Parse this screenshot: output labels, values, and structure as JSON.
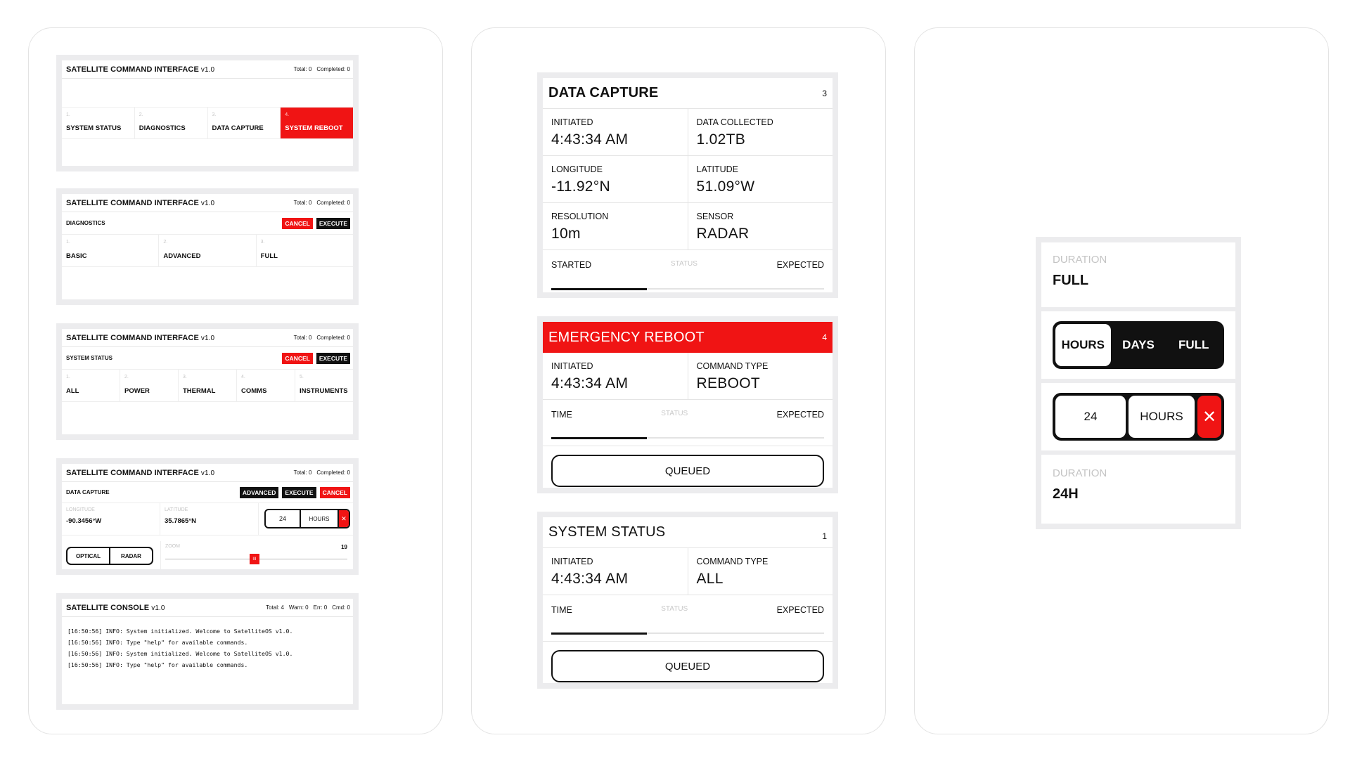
{
  "system_reboot_panel": {
    "title": "SATELLITE COMMAND INTERFACE",
    "version": "v1.0",
    "total": "Total: 0",
    "completed": "Completed: 0",
    "tabs": [
      {
        "num": "1.",
        "label": "SYSTEM STATUS"
      },
      {
        "num": "2.",
        "label": "DIAGNOSTICS"
      },
      {
        "num": "3.",
        "label": "DATA CAPTURE"
      },
      {
        "num": "4.",
        "label": "SYSTEM REBOOT"
      }
    ]
  },
  "diagnostics_panel": {
    "title": "SATELLITE COMMAND INTERFACE",
    "version": "v1.0",
    "total": "Total: 0",
    "completed": "Completed: 0",
    "section": "DIAGNOSTICS",
    "cancel": "CANCEL",
    "execute": "EXECUTE",
    "tabs": [
      {
        "num": "1.",
        "label": "BASIC"
      },
      {
        "num": "2.",
        "label": "ADVANCED"
      },
      {
        "num": "3.",
        "label": "FULL"
      }
    ]
  },
  "status_panel": {
    "title": "SATELLITE COMMAND INTERFACE",
    "version": "v1.0",
    "total": "Total: 0",
    "completed": "Completed: 0",
    "section": "SYSTEM STATUS",
    "cancel": "CANCEL",
    "execute": "EXECUTE",
    "tabs": [
      {
        "num": "1.",
        "label": "ALL"
      },
      {
        "num": "2.",
        "label": "POWER"
      },
      {
        "num": "3.",
        "label": "THERMAL"
      },
      {
        "num": "4.",
        "label": "COMMS"
      },
      {
        "num": "5.",
        "label": "INSTRUMENTS"
      }
    ]
  },
  "capture_panel": {
    "title": "SATELLITE COMMAND INTERFACE",
    "version": "v1.0",
    "total": "Total: 0",
    "completed": "Completed: 0",
    "section": "DATA CAPTURE",
    "advanced": "ADVANCED",
    "execute": "EXECUTE",
    "cancel": "CANCEL",
    "longitude_label": "LONGITUDE",
    "longitude_value": "-90.3456°W",
    "latitude_label": "LATITUDE",
    "latitude_value": "35.7865°N",
    "duration_value": "24",
    "duration_unit": "HOURS",
    "clear": "✕",
    "sensor_options": [
      "OPTICAL",
      "RADAR"
    ],
    "zoom_label": "ZOOM",
    "zoom_value": "19",
    "zoom_fraction": 0.49,
    "zoom_thumb": "III"
  },
  "console_panel": {
    "title": "SATELLITE CONSOLE",
    "version": "v1.0",
    "total": "Total: 4",
    "warn": "Warn: 0",
    "err": "Err: 0",
    "cmd": "Cmd: 0",
    "lines": [
      "[16:50:56] INFO: System initialized. Welcome to SatelliteOS v1.0.",
      "[16:50:56] INFO: Type \"help\" for available commands.",
      "[16:50:56] INFO: System initialized. Welcome to SatelliteOS v1.0.",
      "[16:50:56] INFO: Type \"help\" for available commands."
    ]
  },
  "data_capture_card": {
    "title": "DATA CAPTURE",
    "count": "3",
    "initiated_label": "INITIATED",
    "initiated_value": "4:43:34 AM",
    "collected_label": "DATA COLLECTED",
    "collected_value": "1.02TB",
    "longitude_label": "LONGITUDE",
    "longitude_value": "-11.92°N",
    "latitude_label": "LATITUDE",
    "latitude_value": "51.09°W",
    "resolution_label": "RESOLUTION",
    "resolution_value": "10m",
    "sensor_label": "SENSOR",
    "sensor_value": "RADAR",
    "started": "STARTED",
    "status": "STATUS",
    "expected": "EXPECTED",
    "progress": 0.35
  },
  "reboot_card": {
    "title": "EMERGENCY REBOOT",
    "count": "4",
    "initiated_label": "INITIATED",
    "initiated_value": "4:43:34 AM",
    "type_label": "COMMAND TYPE",
    "type_value": "REBOOT",
    "time": "TIME",
    "status": "STATUS",
    "expected": "EXPECTED",
    "progress": 0.35,
    "button": "QUEUED"
  },
  "status_card": {
    "title": "SYSTEM STATUS",
    "count": "1",
    "initiated_label": "INITIATED",
    "initiated_value": "4:43:34 AM",
    "type_label": "COMMAND TYPE",
    "type_value": "ALL",
    "time": "TIME",
    "status": "STATUS",
    "expected": "EXPECTED",
    "progress": 0.35,
    "button": "QUEUED"
  },
  "duration_widget": {
    "top_label": "DURATION",
    "top_value": "FULL",
    "options": [
      "HOURS",
      "DAYS",
      "FULL"
    ],
    "picker_value": "24",
    "picker_unit": "HOURS",
    "clear": "✕",
    "bottom_label": "DURATION",
    "bottom_value": "24H"
  },
  "colors": {
    "accent": "#f01414",
    "ink": "#111111",
    "frame": "#ececee"
  }
}
